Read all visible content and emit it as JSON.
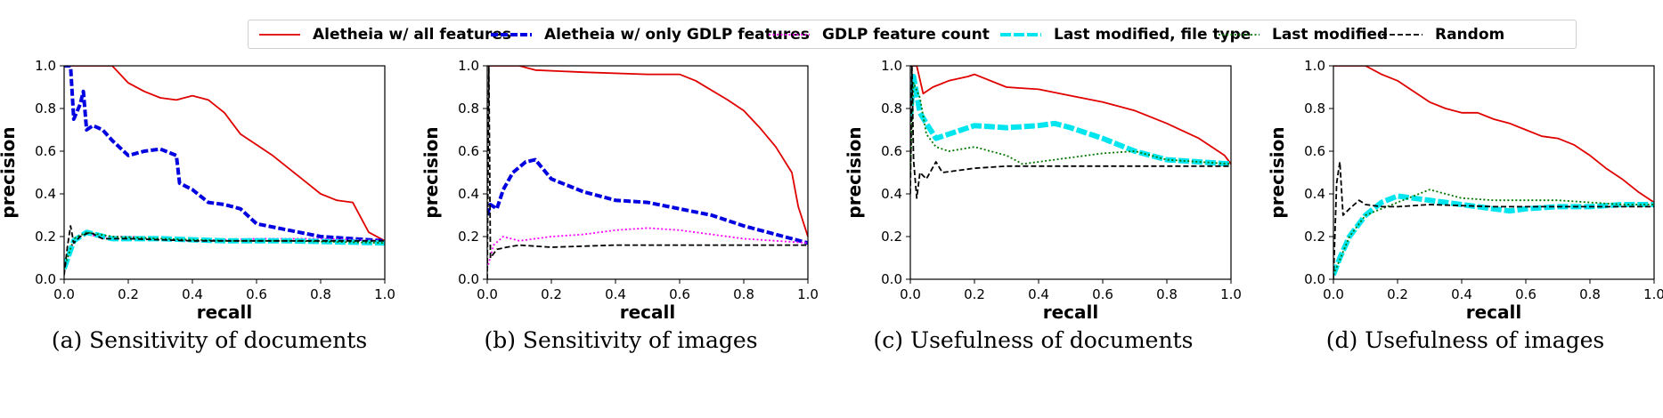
{
  "legend": [
    {
      "label": "Aletheia w/ all features",
      "color": "#e00000",
      "style": "solid"
    },
    {
      "label": "Aletheia w/ only GDLP features",
      "color": "#0000e0",
      "style": "dash-square"
    },
    {
      "label": "GDLP feature count",
      "color": "#ff00ff",
      "style": "dotted"
    },
    {
      "label": "Last modified, file type",
      "color": "#00e5ee",
      "style": "thick-dashed"
    },
    {
      "label": "Last modified",
      "color": "#007700",
      "style": "dotted"
    },
    {
      "label": "Random",
      "color": "#000000",
      "style": "dashed"
    }
  ],
  "chart_data": [
    {
      "type": "line",
      "title": "(a) Sensitivity of documents",
      "xlabel": "recall",
      "ylabel": "precision",
      "xlim": [
        0,
        1
      ],
      "ylim": [
        0,
        1
      ],
      "xticks": [
        "0.0",
        "0.2",
        "0.4",
        "0.6",
        "0.8",
        "1.0"
      ],
      "yticks": [
        "0.0",
        "0.2",
        "0.4",
        "0.6",
        "0.8",
        "1.0"
      ],
      "grid": false,
      "series": [
        {
          "name": "Aletheia w/ all features",
          "x": [
            0.0,
            0.05,
            0.15,
            0.2,
            0.25,
            0.3,
            0.35,
            0.4,
            0.45,
            0.5,
            0.55,
            0.6,
            0.65,
            0.7,
            0.75,
            0.8,
            0.85,
            0.9,
            0.95,
            1.0
          ],
          "y": [
            1.0,
            1.0,
            1.0,
            0.92,
            0.88,
            0.85,
            0.84,
            0.86,
            0.84,
            0.78,
            0.68,
            0.63,
            0.58,
            0.52,
            0.46,
            0.4,
            0.37,
            0.36,
            0.22,
            0.18
          ]
        },
        {
          "name": "Aletheia w/ only GDLP features",
          "x": [
            0.0,
            0.02,
            0.03,
            0.05,
            0.06,
            0.07,
            0.09,
            0.12,
            0.15,
            0.2,
            0.25,
            0.3,
            0.35,
            0.36,
            0.4,
            0.45,
            0.5,
            0.55,
            0.6,
            0.7,
            0.8,
            0.9,
            1.0
          ],
          "y": [
            1.0,
            1.0,
            0.75,
            0.82,
            0.88,
            0.7,
            0.72,
            0.7,
            0.65,
            0.58,
            0.6,
            0.61,
            0.58,
            0.45,
            0.42,
            0.36,
            0.35,
            0.33,
            0.26,
            0.23,
            0.2,
            0.19,
            0.18
          ]
        },
        {
          "name": "GDLP feature count",
          "x": [
            0.0,
            0.03,
            0.06,
            0.1,
            0.2,
            0.4,
            0.6,
            0.8,
            1.0
          ],
          "y": [
            0.05,
            0.18,
            0.22,
            0.2,
            0.2,
            0.18,
            0.19,
            0.19,
            0.18
          ]
        },
        {
          "name": "Last modified, file type",
          "x": [
            0.0,
            0.03,
            0.07,
            0.15,
            0.3,
            0.5,
            0.7,
            1.0
          ],
          "y": [
            0.05,
            0.18,
            0.22,
            0.19,
            0.19,
            0.18,
            0.18,
            0.17
          ]
        },
        {
          "name": "Last modified",
          "x": [
            0.0,
            0.03,
            0.07,
            0.15,
            0.3,
            0.5,
            0.7,
            1.0
          ],
          "y": [
            0.05,
            0.19,
            0.22,
            0.2,
            0.19,
            0.18,
            0.18,
            0.17
          ]
        },
        {
          "name": "Random",
          "x": [
            0.0,
            0.01,
            0.02,
            0.03,
            0.05,
            0.08,
            0.12,
            0.2,
            0.4,
            0.6,
            0.8,
            1.0
          ],
          "y": [
            0.02,
            0.15,
            0.25,
            0.17,
            0.2,
            0.22,
            0.19,
            0.19,
            0.18,
            0.18,
            0.18,
            0.18
          ]
        }
      ]
    },
    {
      "type": "line",
      "title": "(b) Sensitivity of images",
      "xlabel": "recall",
      "ylabel": "precision",
      "xlim": [
        0,
        1
      ],
      "ylim": [
        0,
        1
      ],
      "xticks": [
        "0.0",
        "0.2",
        "0.4",
        "0.6",
        "0.8",
        "1.0"
      ],
      "yticks": [
        "0.0",
        "0.2",
        "0.4",
        "0.6",
        "0.8",
        "1.0"
      ],
      "grid": false,
      "series": [
        {
          "name": "Aletheia w/ all features",
          "x": [
            0.0,
            0.1,
            0.15,
            0.3,
            0.5,
            0.6,
            0.65,
            0.75,
            0.8,
            0.85,
            0.9,
            0.95,
            0.97,
            1.0
          ],
          "y": [
            1.0,
            1.0,
            0.98,
            0.97,
            0.96,
            0.96,
            0.93,
            0.84,
            0.79,
            0.71,
            0.62,
            0.5,
            0.34,
            0.2
          ]
        },
        {
          "name": "Aletheia w/ only GDLP features",
          "x": [
            0.0,
            0.01,
            0.03,
            0.05,
            0.08,
            0.12,
            0.15,
            0.2,
            0.3,
            0.4,
            0.5,
            0.6,
            0.7,
            0.8,
            0.9,
            1.0
          ],
          "y": [
            0.3,
            0.35,
            0.33,
            0.42,
            0.5,
            0.55,
            0.56,
            0.47,
            0.41,
            0.37,
            0.36,
            0.33,
            0.3,
            0.25,
            0.21,
            0.17
          ]
        },
        {
          "name": "GDLP feature count",
          "x": [
            0.0,
            0.02,
            0.05,
            0.1,
            0.2,
            0.3,
            0.4,
            0.5,
            0.6,
            0.7,
            0.8,
            0.9,
            1.0
          ],
          "y": [
            0.05,
            0.16,
            0.2,
            0.18,
            0.2,
            0.21,
            0.23,
            0.24,
            0.23,
            0.21,
            0.19,
            0.18,
            0.17
          ]
        },
        {
          "name": "Random",
          "x": [
            0.0,
            0.005,
            0.01,
            0.03,
            0.06,
            0.1,
            0.2,
            0.4,
            0.6,
            0.8,
            1.0
          ],
          "y": [
            0.0,
            1.0,
            0.1,
            0.14,
            0.15,
            0.16,
            0.15,
            0.16,
            0.16,
            0.16,
            0.16
          ]
        }
      ]
    },
    {
      "type": "line",
      "title": "(c) Usefulness of documents",
      "xlabel": "recall",
      "ylabel": "precision",
      "xlim": [
        0,
        1
      ],
      "ylim": [
        0,
        1
      ],
      "xticks": [
        "0.0",
        "0.2",
        "0.4",
        "0.6",
        "0.8",
        "1.0"
      ],
      "yticks": [
        "0.0",
        "0.2",
        "0.4",
        "0.6",
        "0.8",
        "1.0"
      ],
      "grid": false,
      "series": [
        {
          "name": "Aletheia w/ all features",
          "x": [
            0.0,
            0.02,
            0.04,
            0.07,
            0.12,
            0.18,
            0.2,
            0.3,
            0.4,
            0.5,
            0.6,
            0.7,
            0.8,
            0.9,
            0.98,
            1.0
          ],
          "y": [
            1.0,
            1.0,
            0.87,
            0.9,
            0.93,
            0.95,
            0.96,
            0.9,
            0.89,
            0.86,
            0.83,
            0.79,
            0.73,
            0.66,
            0.58,
            0.54
          ]
        },
        {
          "name": "Last modified, file type",
          "x": [
            0.0,
            0.01,
            0.03,
            0.05,
            0.08,
            0.12,
            0.2,
            0.3,
            0.4,
            0.45,
            0.5,
            0.6,
            0.7,
            0.8,
            0.9,
            1.0
          ],
          "y": [
            0.75,
            0.95,
            0.78,
            0.73,
            0.66,
            0.68,
            0.72,
            0.71,
            0.72,
            0.73,
            0.71,
            0.66,
            0.6,
            0.56,
            0.55,
            0.54
          ]
        },
        {
          "name": "Last modified",
          "x": [
            0.0,
            0.01,
            0.03,
            0.05,
            0.08,
            0.12,
            0.2,
            0.3,
            0.35,
            0.5,
            0.6,
            0.7,
            0.8,
            0.9,
            1.0
          ],
          "y": [
            0.5,
            0.92,
            0.85,
            0.68,
            0.62,
            0.6,
            0.62,
            0.58,
            0.54,
            0.57,
            0.59,
            0.6,
            0.56,
            0.55,
            0.54
          ]
        },
        {
          "name": "Random",
          "x": [
            0.0,
            0.005,
            0.01,
            0.02,
            0.03,
            0.05,
            0.08,
            0.1,
            0.15,
            0.2,
            0.3,
            0.4,
            0.6,
            0.8,
            1.0
          ],
          "y": [
            0.4,
            1.0,
            0.56,
            0.38,
            0.5,
            0.47,
            0.55,
            0.5,
            0.51,
            0.52,
            0.53,
            0.53,
            0.53,
            0.53,
            0.53
          ]
        }
      ]
    },
    {
      "type": "line",
      "title": "(d) Usefulness of images",
      "xlabel": "recall",
      "ylabel": "precision",
      "xlim": [
        0,
        1
      ],
      "ylim": [
        0,
        1
      ],
      "xticks": [
        "0.0",
        "0.2",
        "0.4",
        "0.6",
        "0.8",
        "1.0"
      ],
      "yticks": [
        "0.0",
        "0.2",
        "0.4",
        "0.6",
        "0.8",
        "1.0"
      ],
      "grid": false,
      "series": [
        {
          "name": "Aletheia w/ all features",
          "x": [
            0.0,
            0.1,
            0.15,
            0.2,
            0.25,
            0.3,
            0.35,
            0.4,
            0.45,
            0.5,
            0.55,
            0.6,
            0.65,
            0.7,
            0.75,
            0.8,
            0.85,
            0.9,
            0.95,
            1.0
          ],
          "y": [
            1.0,
            1.0,
            0.96,
            0.93,
            0.88,
            0.83,
            0.8,
            0.78,
            0.78,
            0.75,
            0.73,
            0.7,
            0.67,
            0.66,
            0.63,
            0.58,
            0.52,
            0.47,
            0.41,
            0.36
          ]
        },
        {
          "name": "Last modified, file type",
          "x": [
            0.0,
            0.02,
            0.05,
            0.1,
            0.15,
            0.2,
            0.3,
            0.4,
            0.5,
            0.55,
            0.6,
            0.7,
            0.8,
            0.9,
            1.0
          ],
          "y": [
            0.02,
            0.1,
            0.2,
            0.3,
            0.36,
            0.39,
            0.37,
            0.35,
            0.33,
            0.32,
            0.33,
            0.34,
            0.34,
            0.35,
            0.35
          ]
        },
        {
          "name": "Last modified",
          "x": [
            0.0,
            0.05,
            0.1,
            0.15,
            0.2,
            0.25,
            0.3,
            0.35,
            0.4,
            0.5,
            0.6,
            0.7,
            0.8,
            0.9,
            1.0
          ],
          "y": [
            0.02,
            0.2,
            0.3,
            0.33,
            0.36,
            0.39,
            0.42,
            0.4,
            0.38,
            0.37,
            0.37,
            0.37,
            0.36,
            0.35,
            0.35
          ]
        },
        {
          "name": "Random",
          "x": [
            0.0,
            0.01,
            0.02,
            0.03,
            0.05,
            0.08,
            0.1,
            0.15,
            0.2,
            0.3,
            0.5,
            0.7,
            1.0
          ],
          "y": [
            0.0,
            0.45,
            0.55,
            0.3,
            0.33,
            0.37,
            0.35,
            0.34,
            0.34,
            0.35,
            0.34,
            0.34,
            0.34
          ]
        }
      ]
    }
  ]
}
